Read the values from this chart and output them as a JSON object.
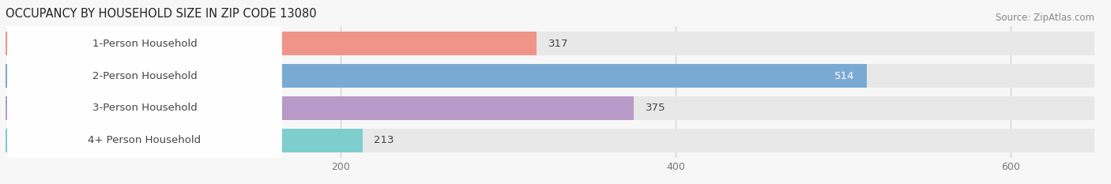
{
  "title": "OCCUPANCY BY HOUSEHOLD SIZE IN ZIP CODE 13080",
  "source": "Source: ZipAtlas.com",
  "categories": [
    "1-Person Household",
    "2-Person Household",
    "3-Person Household",
    "4+ Person Household"
  ],
  "values": [
    317,
    514,
    375,
    213
  ],
  "bar_colors": [
    "#f0948a",
    "#7aaad4",
    "#b89ac8",
    "#7ecece"
  ],
  "value_inside": [
    false,
    true,
    false,
    false
  ],
  "bar_bg_color": "#e8e8e8",
  "xlim": [
    0,
    650
  ],
  "xticks": [
    200,
    400,
    600
  ],
  "title_fontsize": 10.5,
  "source_fontsize": 8.5,
  "label_fontsize": 9.5,
  "value_fontsize": 9.5,
  "tick_fontsize": 9,
  "background_color": "#f7f7f7"
}
